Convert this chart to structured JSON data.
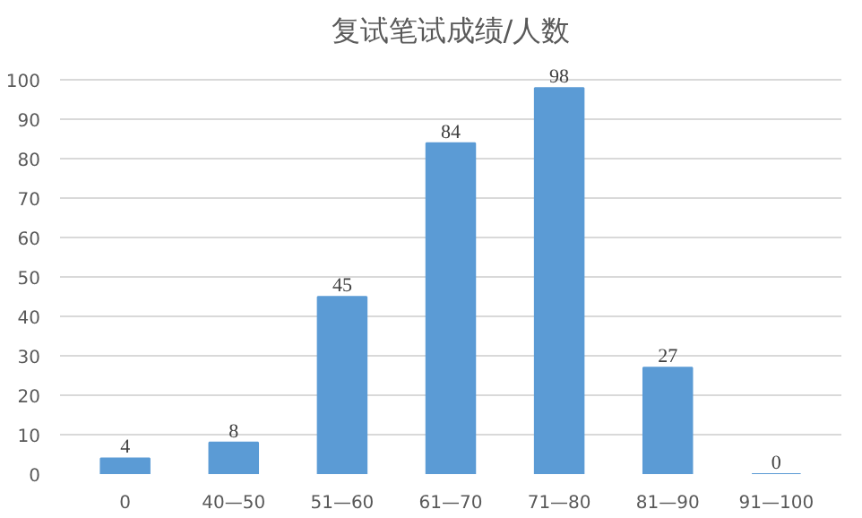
{
  "chart_data": {
    "type": "bar",
    "title": "复试笔试成绩/人数",
    "categories": [
      "0",
      "40—50",
      "51—60",
      "61—70",
      "71—80",
      "81—90",
      "91—100"
    ],
    "values": [
      4,
      8,
      45,
      84,
      98,
      27,
      0
    ],
    "color": "#5b9bd5",
    "ylim": [
      0,
      100
    ],
    "yticks": [
      0,
      10,
      20,
      30,
      40,
      50,
      60,
      70,
      80,
      90,
      100
    ],
    "grid": "y",
    "data_labels": true
  }
}
